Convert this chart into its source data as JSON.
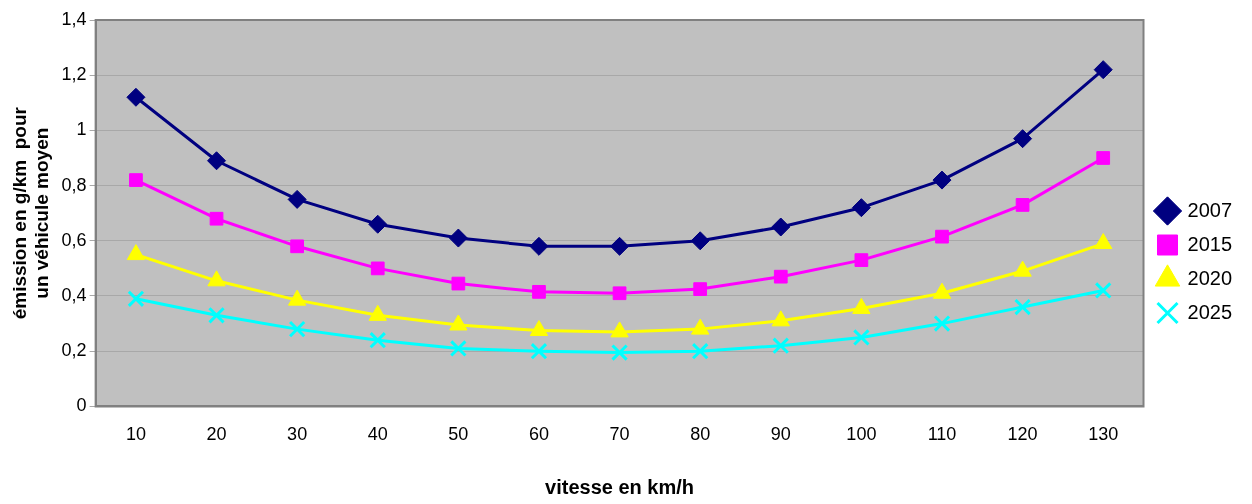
{
  "chart_data": {
    "type": "line",
    "xlabel": "vitesse en km/h",
    "ylabel": "émission en g/km  pour un véhicule moyen",
    "categories": [
      "10",
      "20",
      "30",
      "40",
      "50",
      "60",
      "70",
      "80",
      "90",
      "100",
      "110",
      "120",
      "130"
    ],
    "series": [
      {
        "name": "2007",
        "color": "#000080",
        "marker": "diamond",
        "values": [
          1.12,
          0.89,
          0.75,
          0.66,
          0.61,
          0.58,
          0.58,
          0.6,
          0.65,
          0.72,
          0.82,
          0.97,
          1.22
        ]
      },
      {
        "name": "2015",
        "color": "#ff00ff",
        "marker": "square",
        "values": [
          0.82,
          0.68,
          0.58,
          0.5,
          0.445,
          0.415,
          0.41,
          0.425,
          0.47,
          0.53,
          0.615,
          0.73,
          0.9
        ]
      },
      {
        "name": "2020",
        "color": "#ffff00",
        "marker": "triangle",
        "values": [
          0.55,
          0.455,
          0.385,
          0.33,
          0.295,
          0.275,
          0.27,
          0.28,
          0.31,
          0.355,
          0.41,
          0.49,
          0.59
        ]
      },
      {
        "name": "2025",
        "color": "#00ffff",
        "marker": "cross",
        "values": [
          0.39,
          0.33,
          0.28,
          0.24,
          0.21,
          0.2,
          0.195,
          0.2,
          0.22,
          0.25,
          0.3,
          0.36,
          0.42
        ]
      }
    ],
    "ylim": [
      0,
      1.4
    ],
    "yticks": [
      0,
      {
        "value": 0.2,
        "label": "0,2"
      },
      {
        "value": 0.4,
        "label": "0,4"
      },
      {
        "value": 0.6,
        "label": "0,6"
      },
      {
        "value": 0.8,
        "label": "0,8"
      },
      1,
      {
        "value": 1.2,
        "label": "1,2"
      },
      {
        "value": 1.4,
        "label": "1,4"
      }
    ],
    "grid": "y",
    "legend": "right"
  }
}
